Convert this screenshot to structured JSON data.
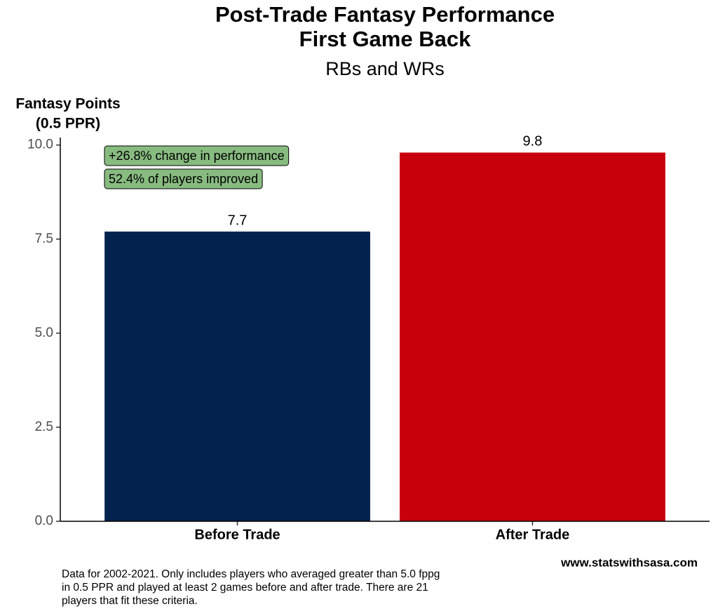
{
  "chart_data": {
    "type": "bar",
    "title": [
      "Post-Trade Fantasy Performance",
      "First Game Back"
    ],
    "subtitle": "RBs and WRs",
    "y_label": [
      "Fantasy Points",
      "(0.5 PPR)"
    ],
    "categories": [
      "Before Trade",
      "After Trade"
    ],
    "values": [
      7.7,
      9.8
    ],
    "colors": [
      "#03234f",
      "#c8000c"
    ],
    "ylim": [
      0,
      10.2
    ],
    "yticks": [
      {
        "value": 0,
        "label": "0.0"
      },
      2.5,
      {
        "value": 5,
        "label": "5.0"
      },
      7.5,
      {
        "value": 10,
        "label": "10.0"
      }
    ],
    "grid": false,
    "annotations": [
      "+26.8% change in performance",
      "52.4% of players improved"
    ],
    "annotation_color": "#88bb80",
    "caption": [
      "Data for 2002-2021. Only includes players who averaged greater than 5.0 fppg",
      "in 0.5 PPR and played at least 2 games before and after trade. There are 21",
      "players that fit these criteria."
    ],
    "credit": "www.statswithsasa.com"
  }
}
